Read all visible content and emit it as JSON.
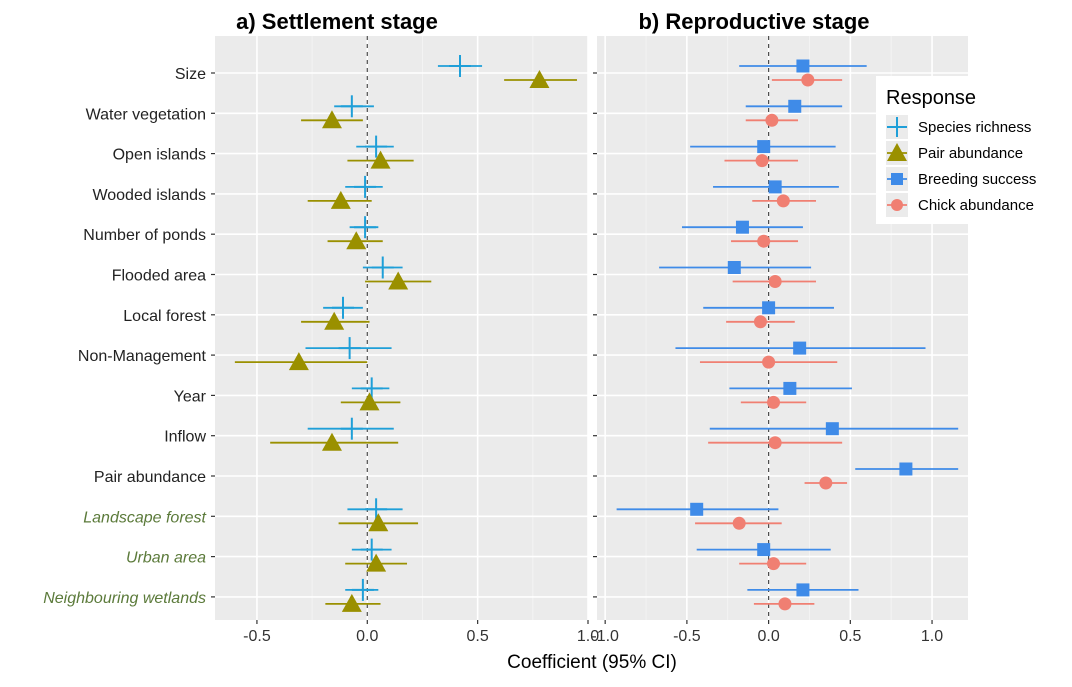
{
  "chart_data": [
    {
      "type": "forest",
      "title": "a) Settlement stage",
      "xlabel": "Coefficient (95% CI)",
      "xlim": [
        -0.69,
        1.0
      ],
      "xticks": [
        "-0.5",
        "0.0",
        "0.5",
        "1.0"
      ],
      "xtick_values": [
        -0.5,
        0.0,
        0.5,
        1.0
      ],
      "categories": [
        "Size",
        "Water vegetation",
        "Open islands",
        "Wooded islands",
        "Number of ponds",
        "Flooded area",
        "Local forest",
        "Non-Management",
        "Year",
        "Inflow",
        "Pair abundance",
        "Landscape forest",
        "Urban area",
        "Neighbouring wetlands"
      ],
      "italic_categories": [
        "Landscape forest",
        "Urban area",
        "Neighbouring wetlands"
      ],
      "series": [
        {
          "name": "Species richness",
          "color": "#1f9fd8",
          "shape": "cross",
          "points": [
            {
              "category": "Size",
              "est": 0.42,
              "lo": 0.32,
              "hi": 0.52
            },
            {
              "category": "Water vegetation",
              "est": -0.07,
              "lo": -0.15,
              "hi": 0.03
            },
            {
              "category": "Open islands",
              "est": 0.04,
              "lo": -0.05,
              "hi": 0.12
            },
            {
              "category": "Wooded islands",
              "est": -0.01,
              "lo": -0.1,
              "hi": 0.07
            },
            {
              "category": "Number of ponds",
              "est": -0.01,
              "lo": -0.08,
              "hi": 0.05
            },
            {
              "category": "Flooded area",
              "est": 0.07,
              "lo": -0.02,
              "hi": 0.16
            },
            {
              "category": "Local forest",
              "est": -0.11,
              "lo": -0.2,
              "hi": -0.02
            },
            {
              "category": "Non-Management",
              "est": -0.08,
              "lo": -0.28,
              "hi": 0.11
            },
            {
              "category": "Year",
              "est": 0.02,
              "lo": -0.07,
              "hi": 0.1
            },
            {
              "category": "Inflow",
              "est": -0.07,
              "lo": -0.27,
              "hi": 0.12
            },
            {
              "category": "Landscape forest",
              "est": 0.04,
              "lo": -0.09,
              "hi": 0.16
            },
            {
              "category": "Urban area",
              "est": 0.02,
              "lo": -0.07,
              "hi": 0.11
            },
            {
              "category": "Neighbouring wetlands",
              "est": -0.02,
              "lo": -0.1,
              "hi": 0.05
            }
          ]
        },
        {
          "name": "Pair abundance",
          "color": "#9a9000",
          "shape": "triangle",
          "points": [
            {
              "category": "Size",
              "est": 0.78,
              "lo": 0.62,
              "hi": 0.95
            },
            {
              "category": "Water vegetation",
              "est": -0.16,
              "lo": -0.3,
              "hi": -0.02
            },
            {
              "category": "Open islands",
              "est": 0.06,
              "lo": -0.09,
              "hi": 0.21
            },
            {
              "category": "Wooded islands",
              "est": -0.12,
              "lo": -0.27,
              "hi": 0.02
            },
            {
              "category": "Number of ponds",
              "est": -0.05,
              "lo": -0.18,
              "hi": 0.07
            },
            {
              "category": "Flooded area",
              "est": 0.14,
              "lo": -0.01,
              "hi": 0.29
            },
            {
              "category": "Local forest",
              "est": -0.15,
              "lo": -0.3,
              "hi": 0.01
            },
            {
              "category": "Non-Management",
              "est": -0.31,
              "lo": -0.6,
              "hi": 0.0
            },
            {
              "category": "Year",
              "est": 0.01,
              "lo": -0.12,
              "hi": 0.15
            },
            {
              "category": "Inflow",
              "est": -0.16,
              "lo": -0.44,
              "hi": 0.14
            },
            {
              "category": "Landscape forest",
              "est": 0.05,
              "lo": -0.13,
              "hi": 0.23
            },
            {
              "category": "Urban area",
              "est": 0.04,
              "lo": -0.1,
              "hi": 0.18
            },
            {
              "category": "Neighbouring wetlands",
              "est": -0.07,
              "lo": -0.19,
              "hi": 0.06
            }
          ]
        }
      ]
    },
    {
      "type": "forest",
      "title": "b) Reproductive stage",
      "xlabel": "Coefficient (95% CI)",
      "xlim": [
        -1.05,
        1.22
      ],
      "xticks": [
        "-1.0",
        "-0.5",
        "0.0",
        "0.5",
        "1.0"
      ],
      "xtick_values": [
        -1.0,
        -0.5,
        0.0,
        0.5,
        1.0
      ],
      "categories": [
        "Size",
        "Water vegetation",
        "Open islands",
        "Wooded islands",
        "Number of ponds",
        "Flooded area",
        "Local forest",
        "Non-Management",
        "Year",
        "Inflow",
        "Pair abundance",
        "Landscape forest",
        "Urban area",
        "Neighbouring wetlands"
      ],
      "series": [
        {
          "name": "Breeding success",
          "color": "#3f8be8",
          "shape": "square",
          "points": [
            {
              "category": "Size",
              "est": 0.21,
              "lo": -0.18,
              "hi": 0.6
            },
            {
              "category": "Water vegetation",
              "est": 0.16,
              "lo": -0.14,
              "hi": 0.45
            },
            {
              "category": "Open islands",
              "est": -0.03,
              "lo": -0.48,
              "hi": 0.41
            },
            {
              "category": "Wooded islands",
              "est": 0.04,
              "lo": -0.34,
              "hi": 0.43
            },
            {
              "category": "Number of ponds",
              "est": -0.16,
              "lo": -0.53,
              "hi": 0.21
            },
            {
              "category": "Flooded area",
              "est": -0.21,
              "lo": -0.67,
              "hi": 0.26
            },
            {
              "category": "Local forest",
              "est": 0.0,
              "lo": -0.4,
              "hi": 0.4
            },
            {
              "category": "Non-Management",
              "est": 0.19,
              "lo": -0.57,
              "hi": 0.96
            },
            {
              "category": "Year",
              "est": 0.13,
              "lo": -0.24,
              "hi": 0.51
            },
            {
              "category": "Inflow",
              "est": 0.39,
              "lo": -0.36,
              "hi": 1.16
            },
            {
              "category": "Pair abundance",
              "est": 0.84,
              "lo": 0.53,
              "hi": 1.16
            },
            {
              "category": "Landscape forest",
              "est": -0.44,
              "lo": -0.93,
              "hi": 0.06
            },
            {
              "category": "Urban area",
              "est": -0.03,
              "lo": -0.44,
              "hi": 0.38
            },
            {
              "category": "Neighbouring wetlands",
              "est": 0.21,
              "lo": -0.13,
              "hi": 0.55
            }
          ]
        },
        {
          "name": "Chick abundance",
          "color": "#f07f72",
          "shape": "circle",
          "points": [
            {
              "category": "Size",
              "est": 0.24,
              "lo": 0.02,
              "hi": 0.45
            },
            {
              "category": "Water vegetation",
              "est": 0.02,
              "lo": -0.14,
              "hi": 0.18
            },
            {
              "category": "Open islands",
              "est": -0.04,
              "lo": -0.27,
              "hi": 0.18
            },
            {
              "category": "Wooded islands",
              "est": 0.09,
              "lo": -0.1,
              "hi": 0.29
            },
            {
              "category": "Number of ponds",
              "est": -0.03,
              "lo": -0.23,
              "hi": 0.18
            },
            {
              "category": "Flooded area",
              "est": 0.04,
              "lo": -0.22,
              "hi": 0.29
            },
            {
              "category": "Local forest",
              "est": -0.05,
              "lo": -0.26,
              "hi": 0.16
            },
            {
              "category": "Non-Management",
              "est": 0.0,
              "lo": -0.42,
              "hi": 0.42
            },
            {
              "category": "Year",
              "est": 0.03,
              "lo": -0.17,
              "hi": 0.23
            },
            {
              "category": "Inflow",
              "est": 0.04,
              "lo": -0.37,
              "hi": 0.45
            },
            {
              "category": "Pair abundance",
              "est": 0.35,
              "lo": 0.22,
              "hi": 0.48
            },
            {
              "category": "Landscape forest",
              "est": -0.18,
              "lo": -0.45,
              "hi": 0.08
            },
            {
              "category": "Urban area",
              "est": 0.03,
              "lo": -0.18,
              "hi": 0.23
            },
            {
              "category": "Neighbouring wetlands",
              "est": 0.1,
              "lo": -0.09,
              "hi": 0.28
            }
          ]
        }
      ]
    }
  ],
  "legend": {
    "title": "Response",
    "placement": "top-right",
    "items": [
      {
        "label": "Species richness",
        "color": "#1f9fd8",
        "shape": "cross"
      },
      {
        "label": "Pair abundance",
        "color": "#9a9000",
        "shape": "triangle"
      },
      {
        "label": "Breeding success",
        "color": "#3f8be8",
        "shape": "square"
      },
      {
        "label": "Chick abundance",
        "color": "#f07f72",
        "shape": "circle"
      }
    ]
  }
}
